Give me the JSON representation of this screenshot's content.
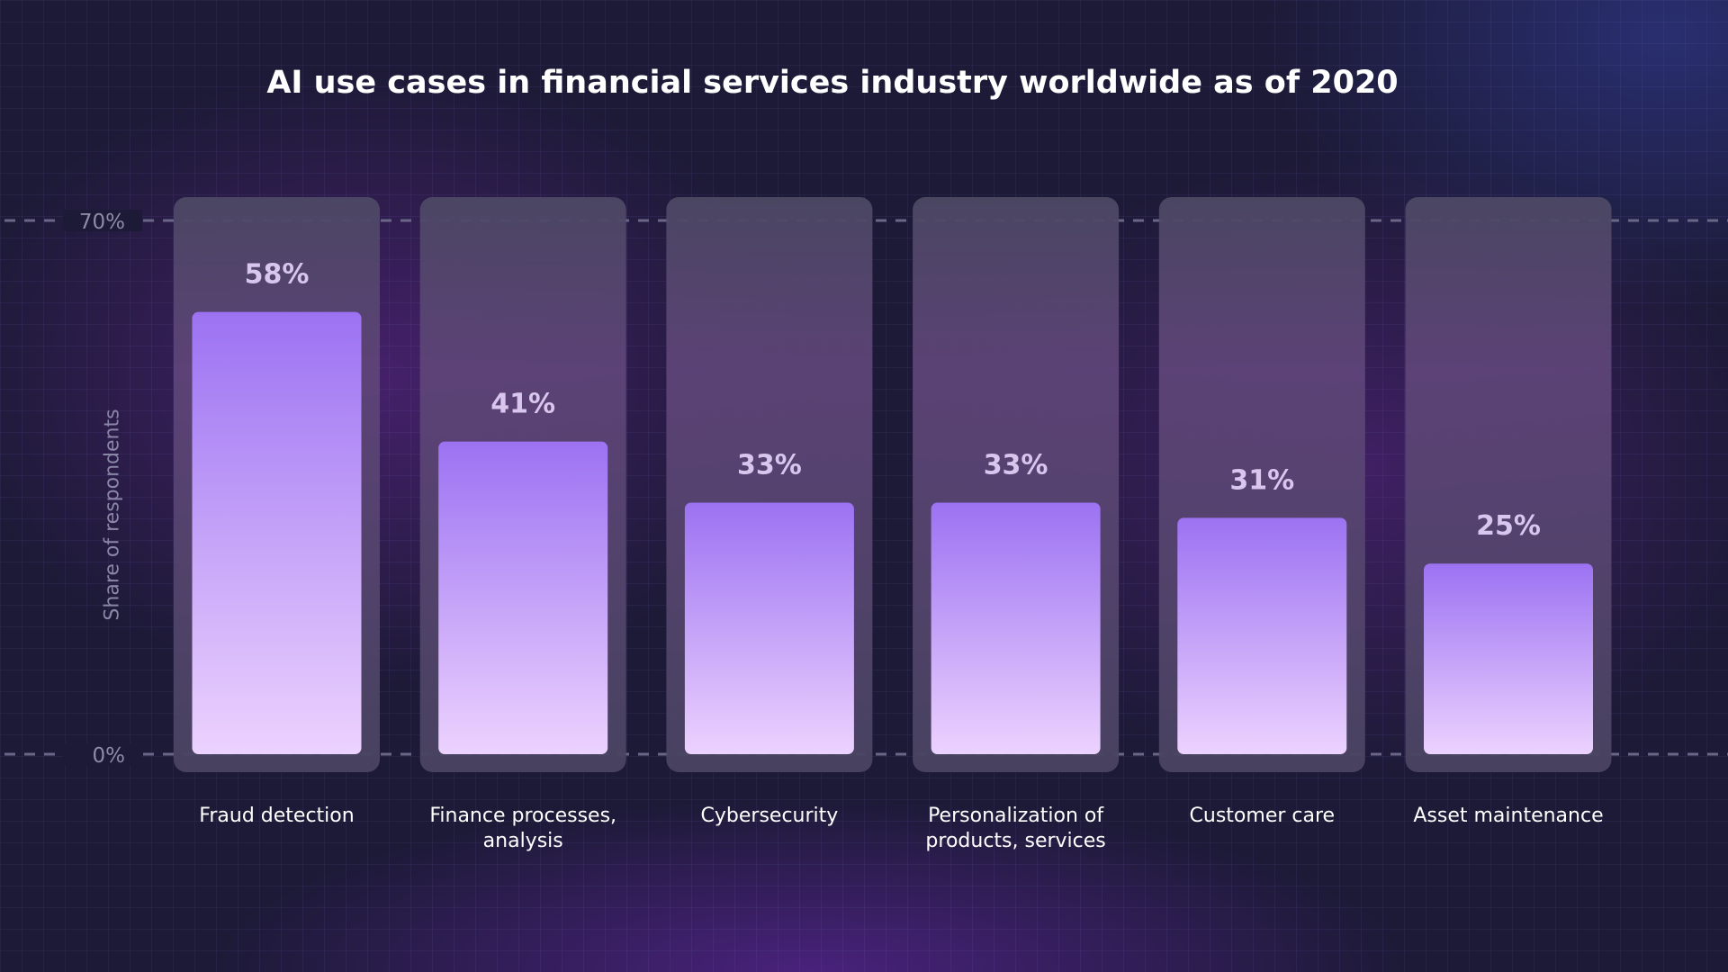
{
  "chart_data": {
    "type": "bar",
    "title": "AI use cases in financial services industry worldwide as of 2020",
    "xlabel": "",
    "ylabel": "Share of respondents",
    "ylim": [
      0,
      70
    ],
    "yticks": [
      "0%",
      "70%"
    ],
    "grid": false,
    "categories": [
      "Fraud detection",
      "Finance processes, analysis",
      "Cybersecurity",
      "Personalization of products, services",
      "Customer care",
      "Asset maintenance"
    ],
    "category_lines": [
      [
        "Fraud detection"
      ],
      [
        "Finance processes,",
        "analysis"
      ],
      [
        "Cybersecurity"
      ],
      [
        "Personalization of",
        "products, services"
      ],
      [
        "Customer care"
      ],
      [
        "Asset maintenance"
      ]
    ],
    "values": [
      58,
      41,
      33,
      33,
      31,
      25
    ],
    "data_labels": [
      "58%",
      "41%",
      "33%",
      "33%",
      "31%",
      "25%"
    ],
    "colors": {
      "bar_top": "#9c72f2",
      "bar_bottom": "#ecd2fe",
      "panel": "#4a4462",
      "label": "#d9c6ee"
    }
  }
}
